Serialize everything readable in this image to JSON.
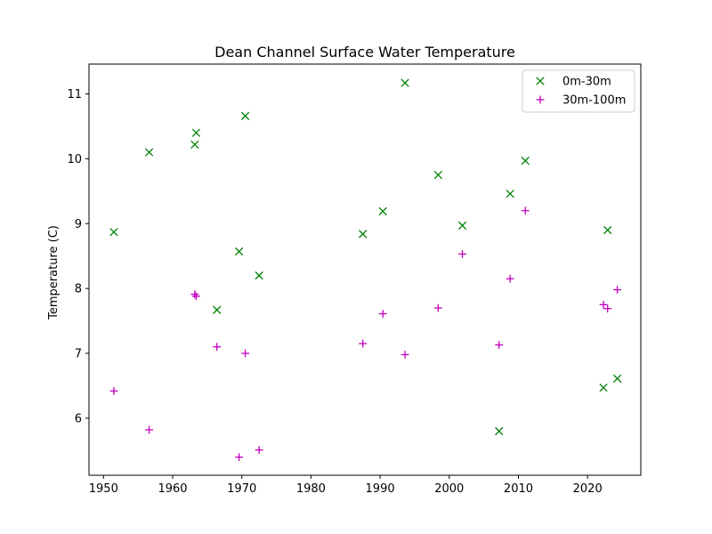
{
  "chart_data": {
    "type": "scatter",
    "title": "Dean Channel Surface Water Temperature",
    "xlabel": "",
    "ylabel": "Temperature (C)",
    "xlim": [
      1947.9,
      2027.7
    ],
    "ylim": [
      5.12,
      11.46
    ],
    "x_ticks": [
      1950,
      1960,
      1970,
      1980,
      1990,
      2000,
      2010,
      2020
    ],
    "y_ticks": [
      6,
      7,
      8,
      9,
      10,
      11
    ],
    "grid": false,
    "legend_position": "upper right",
    "series": [
      {
        "name": "0m-30m",
        "marker": "x",
        "color": "#008000",
        "points": [
          {
            "x": 1951.5,
            "y": 8.87
          },
          {
            "x": 1956.6,
            "y": 10.1
          },
          {
            "x": 1963.2,
            "y": 10.22
          },
          {
            "x": 1963.4,
            "y": 10.4
          },
          {
            "x": 1966.4,
            "y": 7.67
          },
          {
            "x": 1969.6,
            "y": 8.57
          },
          {
            "x": 1970.5,
            "y": 10.66
          },
          {
            "x": 1972.5,
            "y": 8.2
          },
          {
            "x": 1987.5,
            "y": 8.84
          },
          {
            "x": 1990.4,
            "y": 9.19
          },
          {
            "x": 1993.6,
            "y": 11.17
          },
          {
            "x": 1998.4,
            "y": 9.75
          },
          {
            "x": 2001.9,
            "y": 8.97
          },
          {
            "x": 2007.2,
            "y": 5.8
          },
          {
            "x": 2008.8,
            "y": 9.46
          },
          {
            "x": 2011.0,
            "y": 9.97
          },
          {
            "x": 2022.3,
            "y": 6.47
          },
          {
            "x": 2022.9,
            "y": 8.9
          },
          {
            "x": 2024.3,
            "y": 6.61
          }
        ]
      },
      {
        "name": "30m-100m",
        "marker": "+",
        "color": "#bf00bf",
        "points": [
          {
            "x": 1951.5,
            "y": 6.42
          },
          {
            "x": 1956.6,
            "y": 5.82
          },
          {
            "x": 1963.2,
            "y": 7.91
          },
          {
            "x": 1963.4,
            "y": 7.88
          },
          {
            "x": 1966.4,
            "y": 7.1
          },
          {
            "x": 1969.6,
            "y": 5.4
          },
          {
            "x": 1970.5,
            "y": 7.0
          },
          {
            "x": 1972.5,
            "y": 5.51
          },
          {
            "x": 1987.5,
            "y": 7.15
          },
          {
            "x": 1990.4,
            "y": 7.61
          },
          {
            "x": 1993.6,
            "y": 6.98
          },
          {
            "x": 1998.4,
            "y": 7.7
          },
          {
            "x": 2001.9,
            "y": 8.53
          },
          {
            "x": 2007.2,
            "y": 7.13
          },
          {
            "x": 2008.8,
            "y": 8.15
          },
          {
            "x": 2011.0,
            "y": 9.2
          },
          {
            "x": 2022.3,
            "y": 7.75
          },
          {
            "x": 2022.9,
            "y": 7.69
          },
          {
            "x": 2024.3,
            "y": 7.98
          }
        ]
      }
    ]
  }
}
